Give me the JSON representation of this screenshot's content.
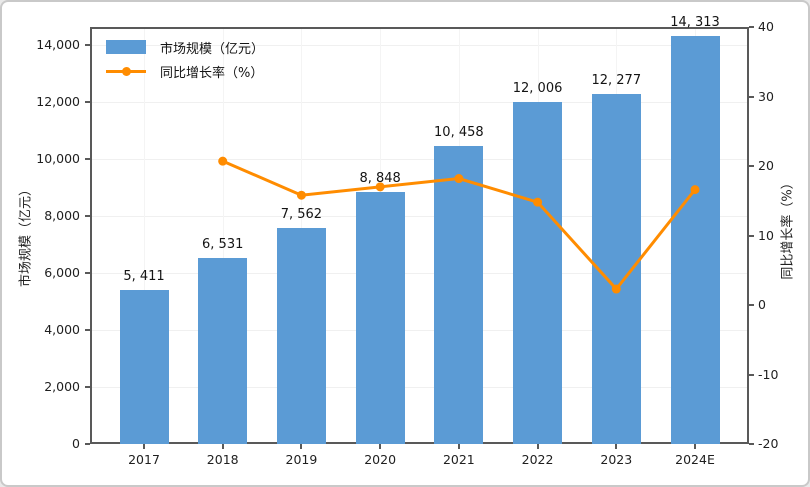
{
  "chart_data": {
    "type": "bar",
    "combo": "bar+line dual axis",
    "categories": [
      "2017",
      "2018",
      "2019",
      "2020",
      "2021",
      "2022",
      "2023",
      "2024E"
    ],
    "series": [
      {
        "name": "市场规模（亿元）",
        "type": "bar",
        "color": "#5B9BD5",
        "axis": "left",
        "values": [
          5411,
          6531,
          7562,
          8848,
          10458,
          12006,
          12277,
          14313
        ],
        "data_labels": [
          "5, 411",
          "6, 531",
          "7, 562",
          "8, 848",
          "10, 458",
          "12, 006",
          "12, 277",
          "14, 313"
        ]
      },
      {
        "name": "同比增长率（%）",
        "type": "line",
        "color": "#FF8C00",
        "axis": "right",
        "values": [
          null,
          20.7,
          15.8,
          17.0,
          18.2,
          14.8,
          2.3,
          16.6
        ]
      }
    ],
    "left_axis": {
      "label": "市场规模（亿元）",
      "min": 0,
      "max": 14000,
      "step": 2000,
      "tick_labels": [
        "0",
        "2,000",
        "4,000",
        "6,000",
        "8,000",
        "10,000",
        "12,000",
        "14,000"
      ]
    },
    "right_axis": {
      "label": "同比增长率（%）",
      "min": -20,
      "max": 40,
      "step": 10,
      "tick_labels": [
        "-20",
        "-10",
        "0",
        "10",
        "20",
        "30",
        "40"
      ]
    },
    "legend": {
      "position": "top-left",
      "entries": [
        {
          "label": "市场规模（亿元）",
          "marker": "bar-swatch",
          "color": "#5B9BD5"
        },
        {
          "label": "同比增长率（%）",
          "marker": "line-dot",
          "color": "#FF8C00"
        }
      ]
    },
    "grid": true
  }
}
